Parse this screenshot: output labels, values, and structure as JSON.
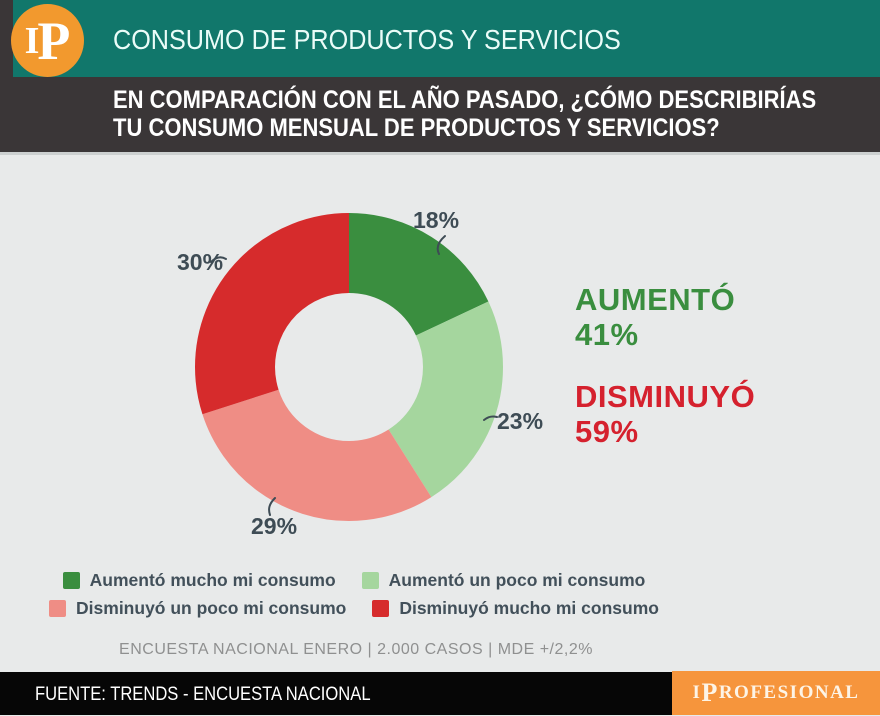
{
  "page": {
    "background": "#e8eaea"
  },
  "header": {
    "bar_color": "#11776b",
    "strip_color": "#3a3637",
    "logo": {
      "circle_color": "#f2992e",
      "part1": "I",
      "part2": "P"
    },
    "title": "CONSUMO DE PRODUCTOS Y SERVICIOS"
  },
  "question": {
    "bar_color": "#3a3637",
    "line1": "EN COMPARACIÓN CON EL AÑO PASADO, ¿CÓMO DESCRIBIRÍAS",
    "line2": "TU CONSUMO MENSUAL DE PRODUCTOS Y SERVICIOS?"
  },
  "chart_data": {
    "type": "pie",
    "variant": "donut",
    "start": "top-clockwise",
    "categories": [
      "Aumentó mucho mi consumo",
      "Aumentó un poco mi consumo",
      "Disminuyó un poco mi consumo",
      "Disminuyó mucho mi consumo"
    ],
    "values": [
      18,
      23,
      29,
      30
    ],
    "colors": [
      "#3a8e3f",
      "#a5d69e",
      "#ef8d85",
      "#d62b2c"
    ],
    "labels": [
      "18%",
      "23%",
      "29%",
      "30%"
    ],
    "label_color": "#3e4c55",
    "legend_position": "bottom",
    "aggregates": [
      {
        "label": "AUMENTÓ",
        "value": "41%",
        "color": "#3a8e3f"
      },
      {
        "label": "DISMINUYÓ",
        "value": "59%",
        "color": "#d5212e"
      }
    ]
  },
  "summary": {
    "increase_label": "AUMENTÓ",
    "increase_value": "41%",
    "increase_color": "#3a8e3f",
    "decrease_label": "DISMINUYÓ",
    "decrease_value": "59%",
    "decrease_color": "#d5212e"
  },
  "legend": {
    "text_color": "#42505a",
    "rows": [
      [
        {
          "label": "Aumentó mucho mi consumo",
          "color": "#3a8e3f"
        },
        {
          "label": "Aumentó un poco mi consumo",
          "color": "#a5d69e"
        }
      ],
      [
        {
          "label": "Disminuyó un poco mi consumo",
          "color": "#ef8d85"
        },
        {
          "label": "Disminuyó mucho mi consumo",
          "color": "#d62b2c"
        }
      ]
    ]
  },
  "footnote": "ENCUESTA NACIONAL ENERO | 2.000 CASOS | MDE +/2,2%",
  "footer": {
    "bar_color": "#060606",
    "source": "FUENTE: TRENDS - ENCUESTA NACIONAL",
    "brand_bg": "#f6953c",
    "brand": {
      "part1": "I",
      "part2": "P",
      "part3": "ROFESIONAL"
    }
  }
}
